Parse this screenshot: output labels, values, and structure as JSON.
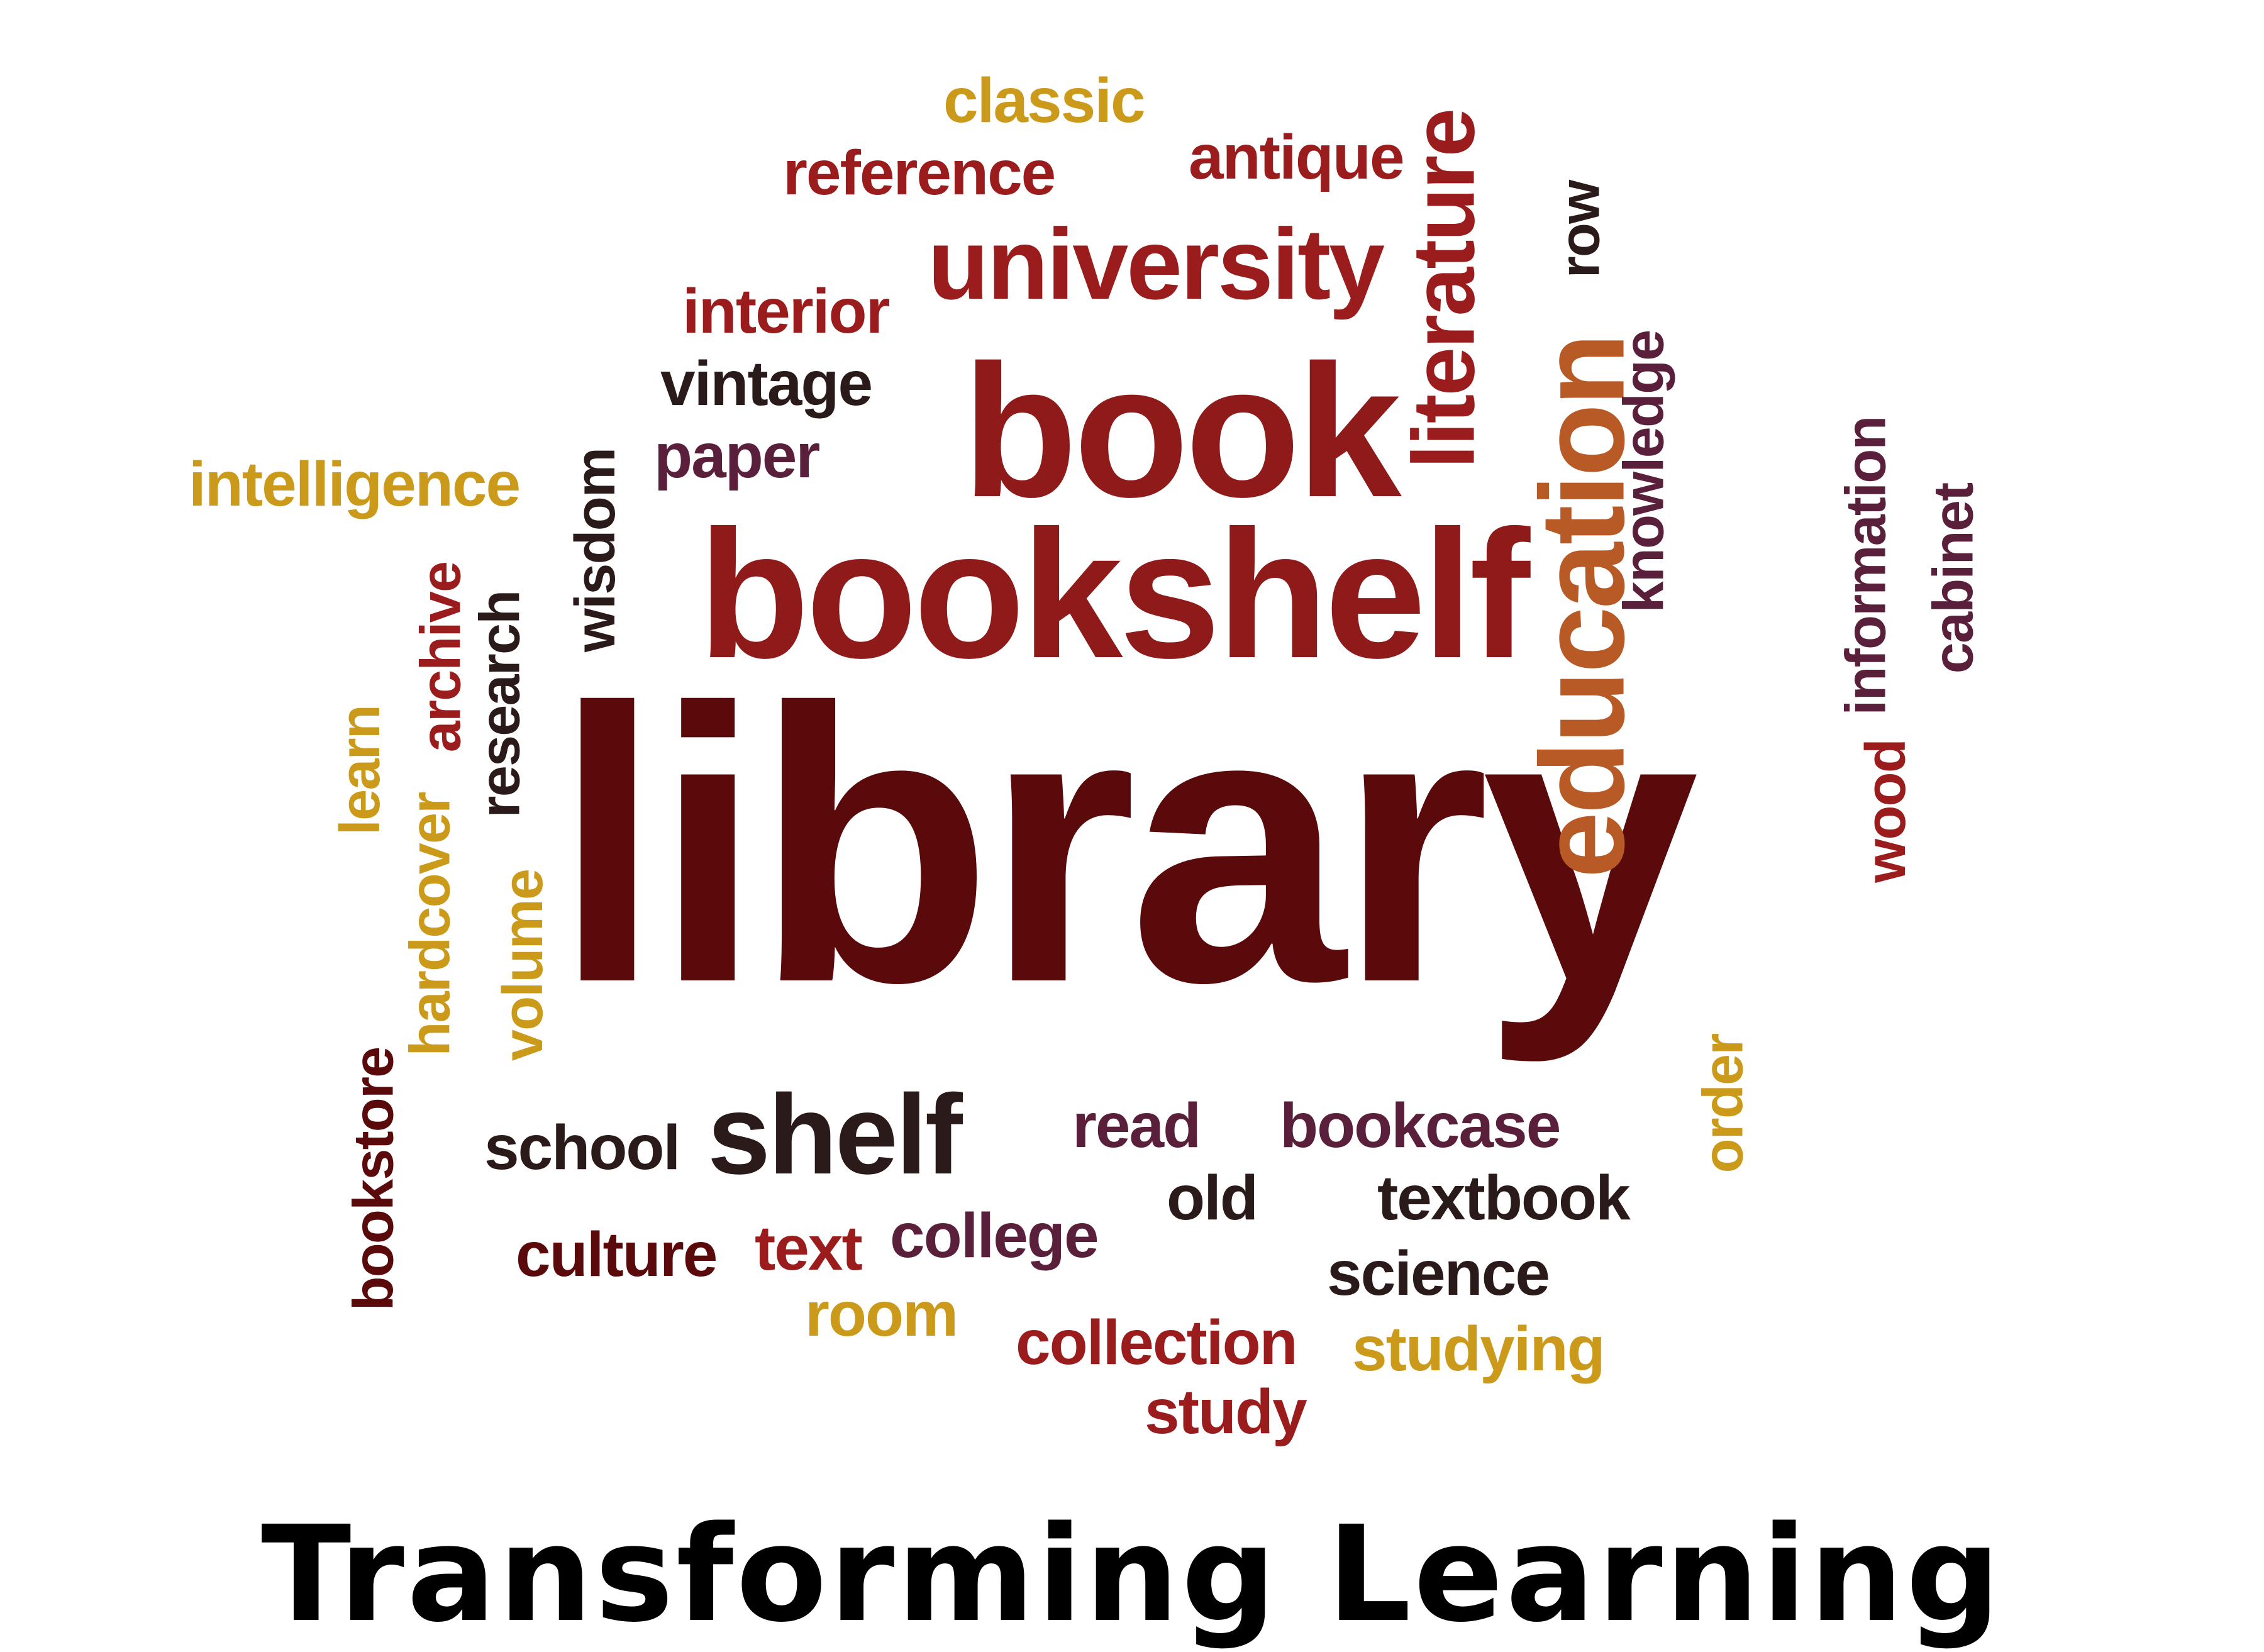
{
  "colors": {
    "dark_maroon": "#5a0a0a",
    "red": "#9b1c1c",
    "crimson": "#8e1a1a",
    "gold": "#cc9a1a",
    "orange_brown": "#b85a26",
    "dark_gray": "#2a1a1a",
    "plum": "#5a1f3a"
  },
  "words": [
    {
      "text": "library",
      "color": "#5a0a0a"
    },
    {
      "text": "bookshelf",
      "color": "#8e1a1a"
    },
    {
      "text": "book",
      "color": "#8e1a1a"
    },
    {
      "text": "university",
      "color": "#9b1c1c"
    },
    {
      "text": "education",
      "color": "#b85a26"
    },
    {
      "text": "literature",
      "color": "#9b1c1c"
    },
    {
      "text": "classic",
      "color": "#cc9a1a"
    },
    {
      "text": "reference",
      "color": "#9b1c1c"
    },
    {
      "text": "antique",
      "color": "#9b1c1c"
    },
    {
      "text": "interior",
      "color": "#9b1c1c"
    },
    {
      "text": "vintage",
      "color": "#2a1a1a"
    },
    {
      "text": "paper",
      "color": "#5a1f3a"
    },
    {
      "text": "intelligence",
      "color": "#cc9a1a"
    },
    {
      "text": "wisdom",
      "color": "#2a1a1a"
    },
    {
      "text": "research",
      "color": "#2a1a1a"
    },
    {
      "text": "archive",
      "color": "#9b1c1c"
    },
    {
      "text": "hardcover",
      "color": "#cc9a1a"
    },
    {
      "text": "learn",
      "color": "#cc9a1a"
    },
    {
      "text": "volume",
      "color": "#cc9a1a"
    },
    {
      "text": "bookstore",
      "color": "#5a0a0a"
    },
    {
      "text": "row",
      "color": "#2a1a1a"
    },
    {
      "text": "knowledge",
      "color": "#5a1f3a"
    },
    {
      "text": "information",
      "color": "#5a1f3a"
    },
    {
      "text": "wood",
      "color": "#9b1c1c"
    },
    {
      "text": "cabinet",
      "color": "#5a1f3a"
    },
    {
      "text": "order",
      "color": "#cc9a1a"
    },
    {
      "text": "school",
      "color": "#2a1a1a"
    },
    {
      "text": "shelf",
      "color": "#2a1a1a"
    },
    {
      "text": "read",
      "color": "#5a1f3a"
    },
    {
      "text": "bookcase",
      "color": "#5a1f3a"
    },
    {
      "text": "old",
      "color": "#2a1a1a"
    },
    {
      "text": "textbook",
      "color": "#2a1a1a"
    },
    {
      "text": "culture",
      "color": "#5a0a0a"
    },
    {
      "text": "text",
      "color": "#9b1c1c"
    },
    {
      "text": "college",
      "color": "#5a1f3a"
    },
    {
      "text": "science",
      "color": "#2a1a1a"
    },
    {
      "text": "room",
      "color": "#cc9a1a"
    },
    {
      "text": "collection",
      "color": "#9b1c1c"
    },
    {
      "text": "studying",
      "color": "#cc9a1a"
    },
    {
      "text": "study",
      "color": "#9b1c1c"
    }
  ],
  "caption": {
    "text": "Transforming Learning",
    "color": "#000000"
  }
}
